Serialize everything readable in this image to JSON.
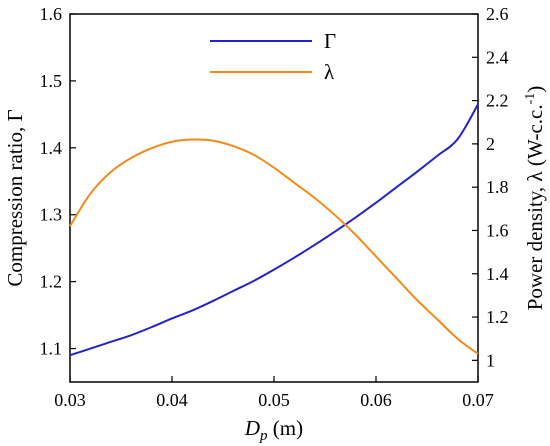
{
  "chart_data": {
    "type": "line",
    "title": "",
    "xlabel": {
      "var": "D",
      "sub": "p",
      "unit": " (m)"
    },
    "ylabel_left": "Compression ratio, Γ",
    "ylabel_right": {
      "main": "Power density, λ (W-c.c.",
      "sup": "-1",
      "end": ")"
    },
    "xlim": [
      0.03,
      0.07
    ],
    "ylim_left": [
      1.05,
      1.6
    ],
    "ylim_right": [
      0.9,
      2.6
    ],
    "xticks": [
      {
        "value": 0.03,
        "label": "0.03"
      },
      {
        "value": 0.04,
        "label": "0.04"
      },
      {
        "value": 0.05,
        "label": "0.05"
      },
      {
        "value": 0.06,
        "label": "0.06"
      },
      {
        "value": 0.07,
        "label": "0.07"
      }
    ],
    "yticks_left": [
      {
        "value": 1.1,
        "label": "1.1"
      },
      {
        "value": 1.2,
        "label": "1.2"
      },
      {
        "value": 1.3,
        "label": "1.3"
      },
      {
        "value": 1.4,
        "label": "1.4"
      },
      {
        "value": 1.5,
        "label": "1.5"
      },
      {
        "value": 1.6,
        "label": "1.6"
      }
    ],
    "yticks_right": [
      {
        "value": 1.0,
        "label": "1"
      },
      {
        "value": 1.2,
        "label": "1.2"
      },
      {
        "value": 1.4,
        "label": "1.4"
      },
      {
        "value": 1.6,
        "label": "1.6"
      },
      {
        "value": 1.8,
        "label": "1.8"
      },
      {
        "value": 2.0,
        "label": "2"
      },
      {
        "value": 2.2,
        "label": "2.2"
      },
      {
        "value": 2.4,
        "label": "2.4"
      },
      {
        "value": 2.6,
        "label": "2.6"
      }
    ],
    "grid": false,
    "legend_position": "top-center",
    "series": [
      {
        "name": "Γ",
        "axis": "left",
        "color": "#2222cc",
        "x": [
          0.03,
          0.032,
          0.034,
          0.036,
          0.038,
          0.04,
          0.042,
          0.044,
          0.046,
          0.048,
          0.05,
          0.052,
          0.054,
          0.056,
          0.058,
          0.06,
          0.062,
          0.064,
          0.066,
          0.068,
          0.07
        ],
        "y": [
          1.09,
          1.1,
          1.11,
          1.12,
          1.132,
          1.145,
          1.157,
          1.171,
          1.186,
          1.201,
          1.218,
          1.236,
          1.255,
          1.275,
          1.296,
          1.318,
          1.341,
          1.364,
          1.388,
          1.413,
          1.465
        ]
      },
      {
        "name": "λ",
        "axis": "right",
        "color": "#f28a1a",
        "x": [
          0.03,
          0.032,
          0.034,
          0.036,
          0.038,
          0.04,
          0.042,
          0.044,
          0.046,
          0.048,
          0.05,
          0.052,
          0.054,
          0.056,
          0.058,
          0.06,
          0.062,
          0.064,
          0.066,
          0.068,
          0.07
        ],
        "y": [
          1.62,
          1.77,
          1.87,
          1.935,
          1.98,
          2.01,
          2.02,
          2.015,
          1.99,
          1.95,
          1.89,
          1.82,
          1.75,
          1.67,
          1.58,
          1.48,
          1.38,
          1.28,
          1.19,
          1.1,
          1.03
        ]
      }
    ]
  }
}
